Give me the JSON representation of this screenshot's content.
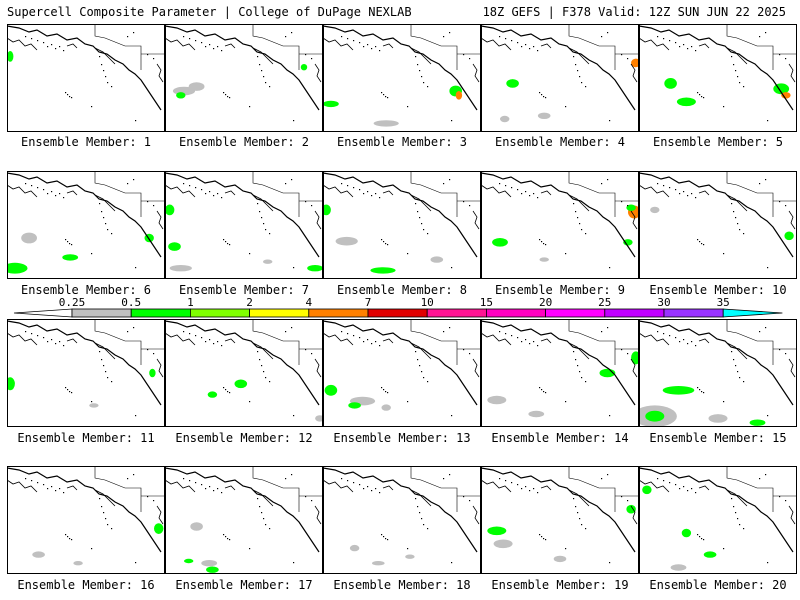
{
  "header": {
    "left": "Supercell Composite Parameter | College of DuPage NEXLAB",
    "right": "18Z GEFS | F378 Valid: 12Z SUN JUN 22 2025"
  },
  "member_label": "Ensemble Member:",
  "members": [
    {
      "number": "1",
      "blobs": [
        [
          0.02,
          0.3,
          0.02,
          0.05,
          "#00ff00"
        ]
      ]
    },
    {
      "number": "2",
      "blobs": [
        [
          0.12,
          0.62,
          0.07,
          0.04,
          "#c0c0c0"
        ],
        [
          0.2,
          0.58,
          0.05,
          0.04,
          "#c0c0c0"
        ],
        [
          0.1,
          0.66,
          0.03,
          0.03,
          "#00ff00"
        ],
        [
          0.88,
          0.4,
          0.02,
          0.03,
          "#00ff00"
        ]
      ]
    },
    {
      "number": "3",
      "blobs": [
        [
          0.84,
          0.62,
          0.04,
          0.05,
          "#00ff00"
        ],
        [
          0.86,
          0.66,
          0.02,
          0.04,
          "#ff8000"
        ],
        [
          0.4,
          0.92,
          0.08,
          0.03,
          "#c0c0c0"
        ],
        [
          0.05,
          0.74,
          0.05,
          0.03,
          "#00ff00"
        ]
      ]
    },
    {
      "number": "4",
      "blobs": [
        [
          0.98,
          0.36,
          0.03,
          0.04,
          "#ff8000"
        ],
        [
          0.2,
          0.55,
          0.04,
          0.04,
          "#00ff00"
        ],
        [
          0.4,
          0.85,
          0.04,
          0.03,
          "#c0c0c0"
        ],
        [
          0.15,
          0.88,
          0.03,
          0.03,
          "#c0c0c0"
        ]
      ]
    },
    {
      "number": "5",
      "blobs": [
        [
          0.2,
          0.55,
          0.04,
          0.05,
          "#00ff00"
        ],
        [
          0.3,
          0.72,
          0.06,
          0.04,
          "#00ff00"
        ],
        [
          0.9,
          0.6,
          0.05,
          0.05,
          "#00ff00"
        ],
        [
          0.93,
          0.66,
          0.03,
          0.03,
          "#ff8000"
        ]
      ]
    },
    {
      "number": "6",
      "blobs": [
        [
          0.05,
          0.9,
          0.08,
          0.05,
          "#00ff00"
        ],
        [
          0.14,
          0.62,
          0.05,
          0.05,
          "#c0c0c0"
        ],
        [
          0.4,
          0.8,
          0.05,
          0.03,
          "#00ff00"
        ],
        [
          0.9,
          0.62,
          0.03,
          0.04,
          "#00ff00"
        ]
      ]
    },
    {
      "number": "7",
      "blobs": [
        [
          0.03,
          0.36,
          0.03,
          0.05,
          "#00ff00"
        ],
        [
          0.06,
          0.7,
          0.04,
          0.04,
          "#00ff00"
        ],
        [
          0.1,
          0.9,
          0.07,
          0.03,
          "#c0c0c0"
        ],
        [
          0.95,
          0.9,
          0.05,
          0.03,
          "#00ff00"
        ],
        [
          0.65,
          0.84,
          0.03,
          0.02,
          "#c0c0c0"
        ]
      ]
    },
    {
      "number": "8",
      "blobs": [
        [
          0.02,
          0.36,
          0.03,
          0.05,
          "#00ff00"
        ],
        [
          0.15,
          0.65,
          0.07,
          0.04,
          "#c0c0c0"
        ],
        [
          0.38,
          0.92,
          0.08,
          0.03,
          "#00ff00"
        ],
        [
          0.72,
          0.82,
          0.04,
          0.03,
          "#c0c0c0"
        ]
      ]
    },
    {
      "number": "9",
      "blobs": [
        [
          0.97,
          0.38,
          0.04,
          0.06,
          "#ff8000"
        ],
        [
          0.95,
          0.34,
          0.03,
          0.03,
          "#00ff00"
        ],
        [
          0.12,
          0.66,
          0.05,
          0.04,
          "#00ff00"
        ],
        [
          0.93,
          0.66,
          0.03,
          0.03,
          "#00ff00"
        ],
        [
          0.4,
          0.82,
          0.03,
          0.02,
          "#c0c0c0"
        ]
      ]
    },
    {
      "number": "10",
      "blobs": [
        [
          0.95,
          0.6,
          0.03,
          0.04,
          "#00ff00"
        ],
        [
          0.1,
          0.36,
          0.03,
          0.03,
          "#c0c0c0"
        ]
      ]
    },
    {
      "number": "11",
      "blobs": [
        [
          0.02,
          0.6,
          0.03,
          0.06,
          "#00ff00"
        ],
        [
          0.92,
          0.5,
          0.02,
          0.04,
          "#00ff00"
        ],
        [
          0.55,
          0.8,
          0.03,
          0.02,
          "#c0c0c0"
        ]
      ]
    },
    {
      "number": "12",
      "blobs": [
        [
          0.48,
          0.6,
          0.04,
          0.04,
          "#00ff00"
        ],
        [
          0.3,
          0.7,
          0.03,
          0.03,
          "#00ff00"
        ],
        [
          0.98,
          0.92,
          0.03,
          0.03,
          "#c0c0c0"
        ]
      ]
    },
    {
      "number": "13",
      "blobs": [
        [
          0.05,
          0.66,
          0.04,
          0.05,
          "#00ff00"
        ],
        [
          0.25,
          0.76,
          0.08,
          0.04,
          "#c0c0c0"
        ],
        [
          0.2,
          0.8,
          0.04,
          0.03,
          "#00ff00"
        ],
        [
          0.4,
          0.82,
          0.03,
          0.03,
          "#c0c0c0"
        ]
      ]
    },
    {
      "number": "14",
      "blobs": [
        [
          0.98,
          0.36,
          0.03,
          0.06,
          "#00ff00"
        ],
        [
          0.8,
          0.5,
          0.05,
          0.04,
          "#00ff00"
        ],
        [
          0.1,
          0.75,
          0.06,
          0.04,
          "#c0c0c0"
        ],
        [
          0.35,
          0.88,
          0.05,
          0.03,
          "#c0c0c0"
        ]
      ]
    },
    {
      "number": "15",
      "blobs": [
        [
          0.1,
          0.9,
          0.14,
          0.1,
          "#c0c0c0"
        ],
        [
          0.1,
          0.9,
          0.06,
          0.05,
          "#00ff00"
        ],
        [
          0.25,
          0.66,
          0.1,
          0.04,
          "#00ff00"
        ],
        [
          0.5,
          0.92,
          0.06,
          0.04,
          "#c0c0c0"
        ],
        [
          0.75,
          0.96,
          0.05,
          0.03,
          "#00ff00"
        ]
      ]
    },
    {
      "number": "16",
      "blobs": [
        [
          0.96,
          0.58,
          0.03,
          0.05,
          "#00ff00"
        ],
        [
          0.2,
          0.82,
          0.04,
          0.03,
          "#c0c0c0"
        ],
        [
          0.45,
          0.9,
          0.03,
          0.02,
          "#c0c0c0"
        ]
      ]
    },
    {
      "number": "17",
      "blobs": [
        [
          0.2,
          0.56,
          0.04,
          0.04,
          "#c0c0c0"
        ],
        [
          0.28,
          0.9,
          0.05,
          0.03,
          "#c0c0c0"
        ],
        [
          0.3,
          0.96,
          0.04,
          0.03,
          "#00ff00"
        ],
        [
          0.15,
          0.88,
          0.03,
          0.02,
          "#00ff00"
        ]
      ]
    },
    {
      "number": "18",
      "blobs": [
        [
          0.2,
          0.76,
          0.03,
          0.03,
          "#c0c0c0"
        ],
        [
          0.35,
          0.9,
          0.04,
          0.02,
          "#c0c0c0"
        ],
        [
          0.55,
          0.84,
          0.03,
          0.02,
          "#c0c0c0"
        ]
      ]
    },
    {
      "number": "19",
      "blobs": [
        [
          0.1,
          0.6,
          0.06,
          0.04,
          "#00ff00"
        ],
        [
          0.14,
          0.72,
          0.06,
          0.04,
          "#c0c0c0"
        ],
        [
          0.5,
          0.86,
          0.04,
          0.03,
          "#c0c0c0"
        ],
        [
          0.95,
          0.4,
          0.03,
          0.04,
          "#00ff00"
        ]
      ]
    },
    {
      "number": "20",
      "blobs": [
        [
          0.05,
          0.22,
          0.03,
          0.04,
          "#00ff00"
        ],
        [
          0.3,
          0.62,
          0.03,
          0.04,
          "#00ff00"
        ],
        [
          0.45,
          0.82,
          0.04,
          0.03,
          "#00ff00"
        ],
        [
          0.25,
          0.94,
          0.05,
          0.03,
          "#c0c0c0"
        ]
      ]
    }
  ],
  "colorbar": {
    "labels": [
      "0.25",
      "0.5",
      "1",
      "2",
      "4",
      "7",
      "10",
      "15",
      "20",
      "25",
      "30",
      "35"
    ],
    "colors": [
      "#c0c0c0",
      "#00ff00",
      "#80ff00",
      "#ffff00",
      "#ff8000",
      "#e00000",
      "#ff1493",
      "#ff00c0",
      "#ff00ff",
      "#c000ff",
      "#9933ff",
      "#00ffff"
    ]
  }
}
